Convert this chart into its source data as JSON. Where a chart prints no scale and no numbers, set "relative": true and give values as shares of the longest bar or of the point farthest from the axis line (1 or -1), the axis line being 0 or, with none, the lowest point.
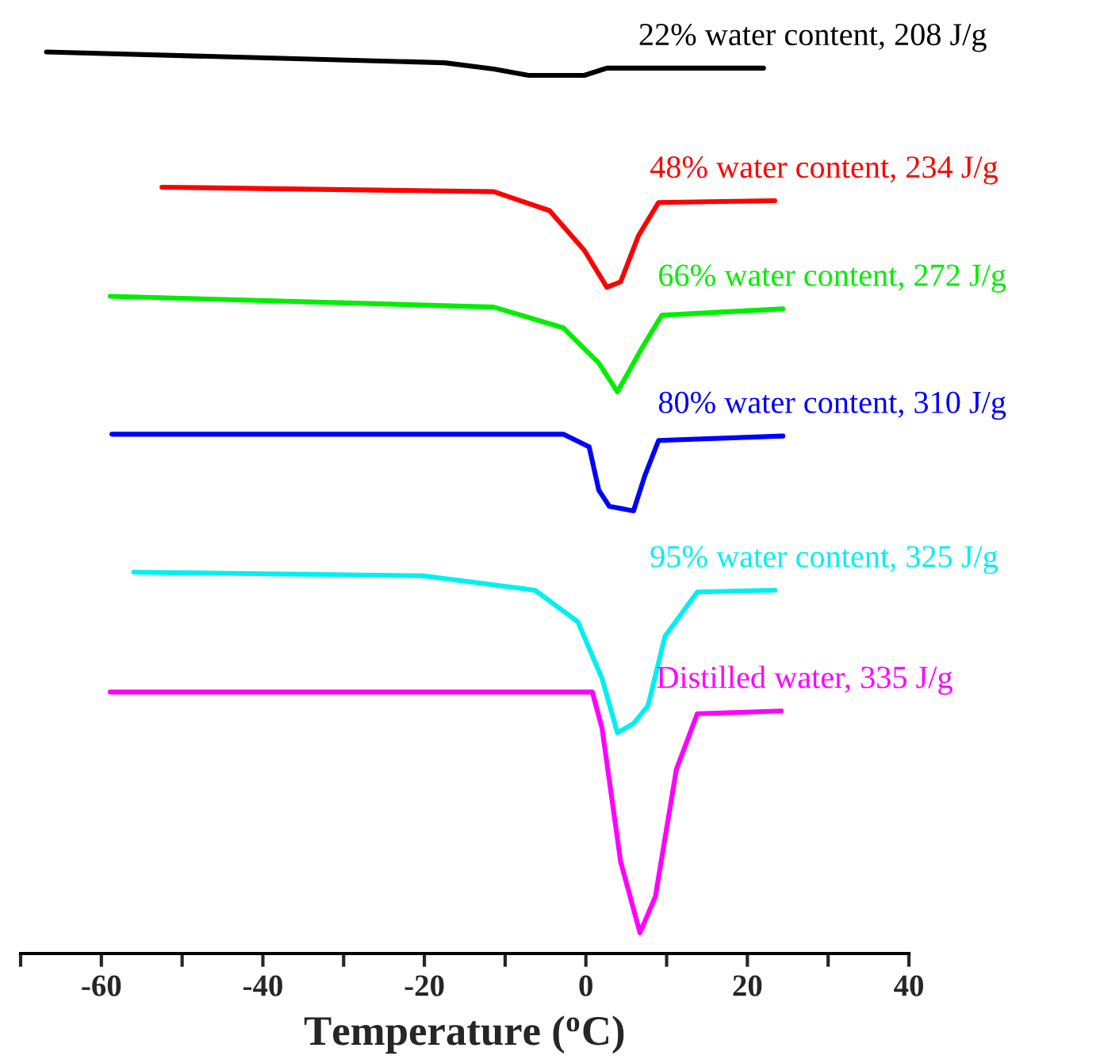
{
  "chart_data": {
    "type": "line",
    "relative": true,
    "xlabel": "Temperature ($^{o}$C)",
    "xlim": [
      -70,
      40
    ],
    "xticks": [
      {
        "value": -70,
        "label": null
      },
      -60,
      {
        "value": -50,
        "label": null
      },
      -40,
      {
        "value": -30,
        "label": null
      },
      -20,
      {
        "value": -10,
        "label": null
      },
      0,
      {
        "value": 10,
        "label": null
      },
      20,
      {
        "value": 30,
        "label": null
      },
      40
    ],
    "grid": false,
    "legend": false,
    "marker": "none",
    "line_style": "solid",
    "series": [
      {
        "name": "22% water content, 208 J/g",
        "color": "#000000",
        "x": [
          -66.8,
          -17.5,
          -11.4,
          -7.1,
          -0.2,
          2.6,
          4.3,
          22.0
        ],
        "values": [
          1.0,
          0.988,
          0.981,
          0.974,
          0.974,
          0.982,
          0.982,
          0.982
        ]
      },
      {
        "name": "48% water content, 234 J/g",
        "color": "#ff0000",
        "x": [
          -52.5,
          -11.4,
          -4.5,
          -0.2,
          2.6,
          4.3,
          6.5,
          9.0,
          23.4
        ],
        "values": [
          0.85,
          0.845,
          0.824,
          0.78,
          0.739,
          0.745,
          0.796,
          0.833,
          0.835
        ]
      },
      {
        "name": "66% water content, 272 J/g",
        "color": "#00ee00",
        "x": [
          -58.9,
          -11.4,
          -2.8,
          1.6,
          3.9,
          6.9,
          9.4,
          24.4
        ],
        "values": [
          0.729,
          0.717,
          0.694,
          0.655,
          0.623,
          0.671,
          0.708,
          0.715
        ]
      },
      {
        "name": "80% water content, 310 J/g",
        "color": "#0000ff",
        "x": [
          -58.7,
          -2.8,
          0.4,
          1.6,
          2.9,
          5.9,
          7.3,
          9.0,
          24.4
        ],
        "values": [
          0.576,
          0.576,
          0.562,
          0.514,
          0.496,
          0.491,
          0.53,
          0.569,
          0.574
        ]
      },
      {
        "name": "95% water content, 325 J/g",
        "color": "#00f0f0",
        "x": [
          -56.0,
          -20.2,
          -6.3,
          -1.0,
          2.0,
          3.9,
          5.9,
          7.7,
          9.8,
          13.8,
          23.4
        ],
        "values": [
          0.423,
          0.419,
          0.403,
          0.368,
          0.305,
          0.245,
          0.255,
          0.275,
          0.352,
          0.401,
          0.403
        ]
      },
      {
        "name": "Distilled water, 335 J/g",
        "color": "#ff00ff",
        "x": [
          -58.9,
          0.8,
          2.0,
          4.3,
          6.7,
          8.6,
          11.2,
          13.8,
          24.2
        ],
        "values": [
          0.29,
          0.29,
          0.25,
          0.102,
          0.023,
          0.063,
          0.204,
          0.266,
          0.269
        ]
      }
    ]
  }
}
